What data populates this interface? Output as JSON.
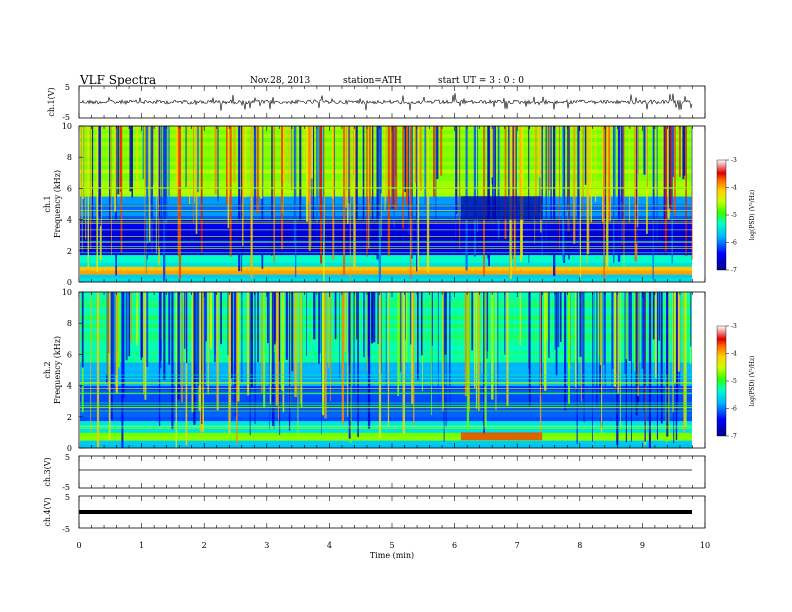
{
  "header": {
    "title": "VLF Spectra",
    "date": "Nov.28, 2013",
    "station": "station=ATH",
    "start": "start  UT  =   3  : 0  : 0"
  },
  "chart_data": [
    {
      "type": "line",
      "panel": "ch1-waveform",
      "ylabel": "ch.1(V)",
      "yticks": [
        "5",
        "-5"
      ],
      "ylim": [
        -5,
        5
      ],
      "xlim": [
        0,
        10
      ],
      "series": [
        {
          "color": "#000000",
          "level": 0
        }
      ]
    },
    {
      "type": "heatmap",
      "panel": "ch1-spectrogram",
      "ylabel": "ch.1\nFrequency  (kHz)",
      "yticks": [
        "0",
        "2",
        "4",
        "6",
        "8",
        "10"
      ],
      "ylim": [
        0,
        10
      ],
      "xlim": [
        0,
        9.8
      ],
      "colorbar": {
        "label": "log(PSD) (V²/Hz)",
        "ticks": [
          "-3",
          "-4",
          "-5",
          "-6",
          "-7"
        ],
        "range": [
          -7,
          -3
        ]
      }
    },
    {
      "type": "heatmap",
      "panel": "ch2-spectrogram",
      "ylabel": "ch.2\nFrequency  (kHz)",
      "yticks": [
        "0",
        "2",
        "4",
        "6",
        "8",
        "10"
      ],
      "ylim": [
        0,
        10
      ],
      "xlim": [
        0,
        9.8
      ],
      "colorbar": {
        "label": "log(PSD) (V²/Hz)",
        "ticks": [
          "-3",
          "-4",
          "-5",
          "-6",
          "-7"
        ],
        "range": [
          -7,
          -3
        ]
      }
    },
    {
      "type": "line",
      "panel": "ch3-waveform",
      "ylabel": "ch.3(V)",
      "yticks": [
        "5",
        "-5"
      ],
      "ylim": [
        -5,
        5
      ],
      "xlim": [
        0,
        10
      ],
      "series": [
        {
          "color": "#000000",
          "level": 0
        }
      ]
    },
    {
      "type": "line",
      "panel": "ch4-waveform",
      "ylabel": "ch.4(V)",
      "yticks": [
        "5",
        "-5"
      ],
      "ylim": [
        -5,
        5
      ],
      "xlim": [
        0,
        10
      ],
      "series": [
        {
          "color": "#000000",
          "level": 0
        }
      ]
    }
  ],
  "xaxis": {
    "label": "Time  (min)",
    "ticks": [
      "0",
      "1",
      "2",
      "3",
      "4",
      "5",
      "6",
      "7",
      "8",
      "9",
      "10"
    ],
    "range": [
      0,
      10
    ]
  }
}
